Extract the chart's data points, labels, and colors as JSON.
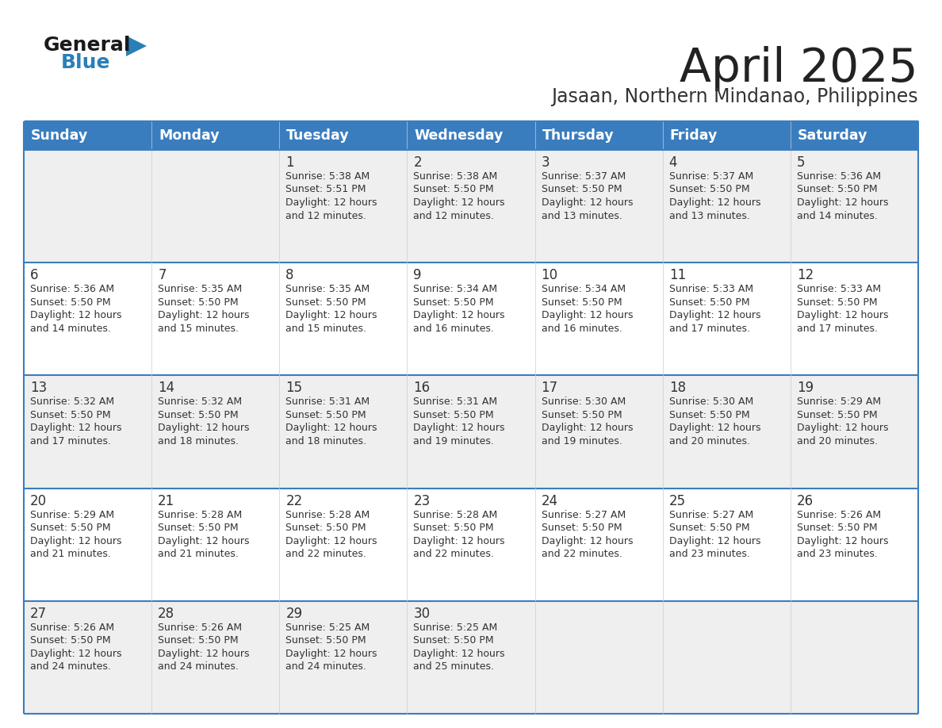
{
  "title": "April 2025",
  "subtitle": "Jasaan, Northern Mindanao, Philippines",
  "days_of_week": [
    "Sunday",
    "Monday",
    "Tuesday",
    "Wednesday",
    "Thursday",
    "Friday",
    "Saturday"
  ],
  "header_bg": "#3a7dbf",
  "header_text": "#ffffff",
  "row_bg_light": "#efefef",
  "row_bg_white": "#ffffff",
  "separator_color": "#3a7dbf",
  "title_color": "#222222",
  "subtitle_color": "#333333",
  "cell_text_color": "#333333",
  "day_num_color": "#333333",
  "logo_general_color": "#1a1a1a",
  "logo_blue_color": "#2980b9",
  "calendar_data": [
    [
      {
        "day": null,
        "sunrise": null,
        "sunset": null,
        "daylight_min": null
      },
      {
        "day": null,
        "sunrise": null,
        "sunset": null,
        "daylight_min": null
      },
      {
        "day": 1,
        "sunrise": "5:38 AM",
        "sunset": "5:51 PM",
        "daylight_min": 732
      },
      {
        "day": 2,
        "sunrise": "5:38 AM",
        "sunset": "5:50 PM",
        "daylight_min": 732
      },
      {
        "day": 3,
        "sunrise": "5:37 AM",
        "sunset": "5:50 PM",
        "daylight_min": 733
      },
      {
        "day": 4,
        "sunrise": "5:37 AM",
        "sunset": "5:50 PM",
        "daylight_min": 733
      },
      {
        "day": 5,
        "sunrise": "5:36 AM",
        "sunset": "5:50 PM",
        "daylight_min": 734
      }
    ],
    [
      {
        "day": 6,
        "sunrise": "5:36 AM",
        "sunset": "5:50 PM",
        "daylight_min": 734
      },
      {
        "day": 7,
        "sunrise": "5:35 AM",
        "sunset": "5:50 PM",
        "daylight_min": 735
      },
      {
        "day": 8,
        "sunrise": "5:35 AM",
        "sunset": "5:50 PM",
        "daylight_min": 735
      },
      {
        "day": 9,
        "sunrise": "5:34 AM",
        "sunset": "5:50 PM",
        "daylight_min": 736
      },
      {
        "day": 10,
        "sunrise": "5:34 AM",
        "sunset": "5:50 PM",
        "daylight_min": 736
      },
      {
        "day": 11,
        "sunrise": "5:33 AM",
        "sunset": "5:50 PM",
        "daylight_min": 737
      },
      {
        "day": 12,
        "sunrise": "5:33 AM",
        "sunset": "5:50 PM",
        "daylight_min": 737
      }
    ],
    [
      {
        "day": 13,
        "sunrise": "5:32 AM",
        "sunset": "5:50 PM",
        "daylight_min": 737
      },
      {
        "day": 14,
        "sunrise": "5:32 AM",
        "sunset": "5:50 PM",
        "daylight_min": 738
      },
      {
        "day": 15,
        "sunrise": "5:31 AM",
        "sunset": "5:50 PM",
        "daylight_min": 738
      },
      {
        "day": 16,
        "sunrise": "5:31 AM",
        "sunset": "5:50 PM",
        "daylight_min": 739
      },
      {
        "day": 17,
        "sunrise": "5:30 AM",
        "sunset": "5:50 PM",
        "daylight_min": 739
      },
      {
        "day": 18,
        "sunrise": "5:30 AM",
        "sunset": "5:50 PM",
        "daylight_min": 740
      },
      {
        "day": 19,
        "sunrise": "5:29 AM",
        "sunset": "5:50 PM",
        "daylight_min": 740
      }
    ],
    [
      {
        "day": 20,
        "sunrise": "5:29 AM",
        "sunset": "5:50 PM",
        "daylight_min": 741
      },
      {
        "day": 21,
        "sunrise": "5:28 AM",
        "sunset": "5:50 PM",
        "daylight_min": 741
      },
      {
        "day": 22,
        "sunrise": "5:28 AM",
        "sunset": "5:50 PM",
        "daylight_min": 742
      },
      {
        "day": 23,
        "sunrise": "5:28 AM",
        "sunset": "5:50 PM",
        "daylight_min": 742
      },
      {
        "day": 24,
        "sunrise": "5:27 AM",
        "sunset": "5:50 PM",
        "daylight_min": 742
      },
      {
        "day": 25,
        "sunrise": "5:27 AM",
        "sunset": "5:50 PM",
        "daylight_min": 743
      },
      {
        "day": 26,
        "sunrise": "5:26 AM",
        "sunset": "5:50 PM",
        "daylight_min": 743
      }
    ],
    [
      {
        "day": 27,
        "sunrise": "5:26 AM",
        "sunset": "5:50 PM",
        "daylight_min": 744
      },
      {
        "day": 28,
        "sunrise": "5:26 AM",
        "sunset": "5:50 PM",
        "daylight_min": 744
      },
      {
        "day": 29,
        "sunrise": "5:25 AM",
        "sunset": "5:50 PM",
        "daylight_min": 744
      },
      {
        "day": 30,
        "sunrise": "5:25 AM",
        "sunset": "5:50 PM",
        "daylight_min": 745
      },
      {
        "day": null,
        "sunrise": null,
        "sunset": null,
        "daylight_min": null
      },
      {
        "day": null,
        "sunrise": null,
        "sunset": null,
        "daylight_min": null
      },
      {
        "day": null,
        "sunrise": null,
        "sunset": null,
        "daylight_min": null
      }
    ]
  ]
}
